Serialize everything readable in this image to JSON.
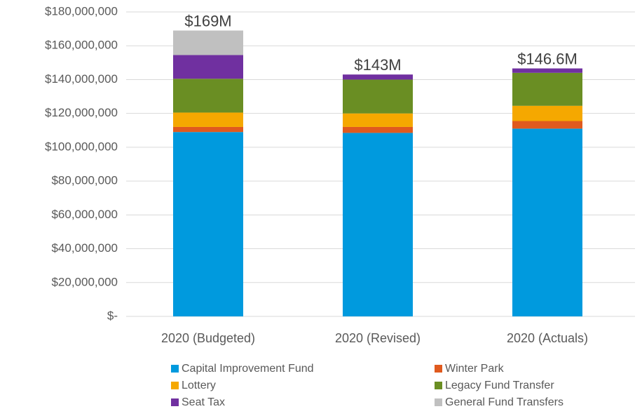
{
  "chart_data": {
    "type": "stacked_bar",
    "categories": [
      "2020 (Budgeted)",
      "2020 (Revised)",
      "2020 (Actuals)"
    ],
    "series": [
      {
        "name": "Capital Improvement Fund",
        "color": "#009ade",
        "values": [
          109000000,
          108500000,
          111000000
        ]
      },
      {
        "name": "Winter Park",
        "color": "#e05a1e",
        "values": [
          3000000,
          3500000,
          4500000
        ]
      },
      {
        "name": "Lottery",
        "color": "#f5a800",
        "values": [
          8500000,
          8000000,
          9000000
        ]
      },
      {
        "name": "Legacy Fund Transfer",
        "color": "#6a8e23",
        "values": [
          20000000,
          20000000,
          19500000
        ]
      },
      {
        "name": "Seat Tax",
        "color": "#7030a0",
        "values": [
          14000000,
          3000000,
          2600000
        ]
      },
      {
        "name": "General Fund Transfers",
        "color": "#c0c0c0",
        "values": [
          14500000,
          0,
          0
        ]
      }
    ],
    "totals": [
      169000000,
      143000000,
      146600000
    ],
    "total_labels": [
      "$169M",
      "$143M",
      "$146.6M"
    ],
    "ylim": [
      0,
      180000000
    ],
    "yticks": [
      {
        "value": 0,
        "label": "$-"
      },
      {
        "value": 20000000,
        "label": "$20,000,000"
      },
      {
        "value": 40000000,
        "label": "$40,000,000"
      },
      {
        "value": 60000000,
        "label": "$60,000,000"
      },
      {
        "value": 80000000,
        "label": "$80,000,000"
      },
      {
        "value": 100000000,
        "label": "$100,000,000"
      },
      {
        "value": 120000000,
        "label": "$120,000,000"
      },
      {
        "value": 140000000,
        "label": "$140,000,000"
      },
      {
        "value": 160000000,
        "label": "$160,000,000"
      },
      {
        "value": 180000000,
        "label": "$180,000,000"
      }
    ],
    "grid": true,
    "legend": "bottom"
  }
}
